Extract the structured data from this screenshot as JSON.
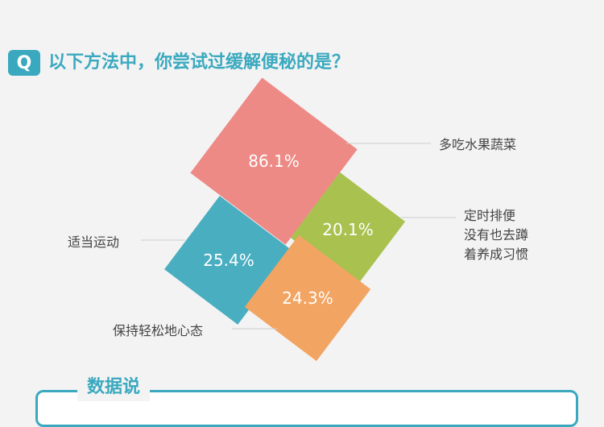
{
  "question": {
    "badge": "Q",
    "text": "以下方法中，你尝试过缓解便秘的是？"
  },
  "chart_data": {
    "type": "rotated-square-area",
    "series": [
      {
        "label": "多吃水果蔬菜",
        "value": 86.1,
        "value_label": "86.1%",
        "color": "#ee8a85"
      },
      {
        "label": "定时排便 没有也去蹲 着养成习惯",
        "label_lines": [
          "定时排便",
          "没有也去蹲",
          "着养成习惯"
        ],
        "value": 20.1,
        "value_label": "20.1%",
        "color": "#a9c14f"
      },
      {
        "label": "适当运动",
        "value": 25.4,
        "value_label": "25.4%",
        "color": "#48aec0"
      },
      {
        "label": "保持轻松地心态",
        "value": 24.3,
        "value_label": "24.3%",
        "color": "#f2a462"
      }
    ]
  },
  "footer": {
    "title": "数据说"
  }
}
